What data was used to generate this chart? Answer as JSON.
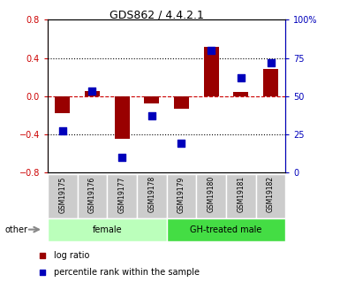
{
  "title": "GDS862 / 4.4.2.1",
  "samples": [
    "GSM19175",
    "GSM19176",
    "GSM19177",
    "GSM19178",
    "GSM19179",
    "GSM19180",
    "GSM19181",
    "GSM19182"
  ],
  "log_ratio": [
    -0.18,
    0.05,
    -0.45,
    -0.08,
    -0.13,
    0.52,
    0.04,
    0.28
  ],
  "percentile_rank": [
    27,
    53,
    10,
    37,
    19,
    80,
    62,
    72
  ],
  "groups": [
    {
      "label": "female",
      "indices": [
        0,
        1,
        2,
        3
      ],
      "color": "#bbffbb"
    },
    {
      "label": "GH-treated male",
      "indices": [
        4,
        5,
        6,
        7
      ],
      "color": "#44dd44"
    }
  ],
  "left_ylim": [
    -0.8,
    0.8
  ],
  "right_ylim": [
    0,
    100
  ],
  "left_yticks": [
    -0.8,
    -0.4,
    0.0,
    0.4,
    0.8
  ],
  "right_yticks": [
    0,
    25,
    50,
    75,
    100
  ],
  "bar_color": "#990000",
  "dot_color": "#0000bb",
  "grid_color": "#000000",
  "zero_line_color": "#cc0000",
  "bg_color": "#ffffff",
  "plot_bg_color": "#ffffff",
  "tick_label_color_left": "#cc0000",
  "tick_label_color_right": "#0000bb",
  "bar_width": 0.5,
  "dot_size": 28,
  "sample_box_color": "#cccccc",
  "title_fontsize": 9,
  "axis_fontsize": 7,
  "legend_fontsize": 7
}
